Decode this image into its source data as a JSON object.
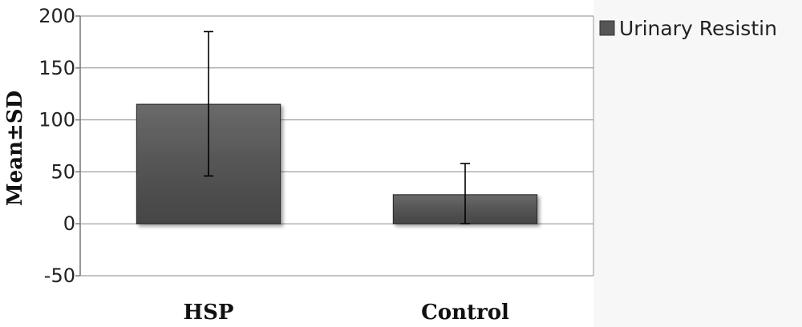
{
  "chart_data": {
    "type": "bar",
    "categories": [
      "HSP",
      "Control"
    ],
    "series": [
      {
        "name": "Urinary Resistin",
        "values": [
          115,
          28
        ],
        "error_low": [
          46,
          0
        ],
        "error_high": [
          185,
          58
        ]
      }
    ],
    "ylabel": "Mean±SD",
    "xlabel": "",
    "ylim": [
      -50,
      200
    ],
    "yticks": [
      200,
      150,
      100,
      50,
      0,
      -50
    ],
    "grid": true,
    "legend_position": "top-right",
    "bar_color": "#555555"
  }
}
